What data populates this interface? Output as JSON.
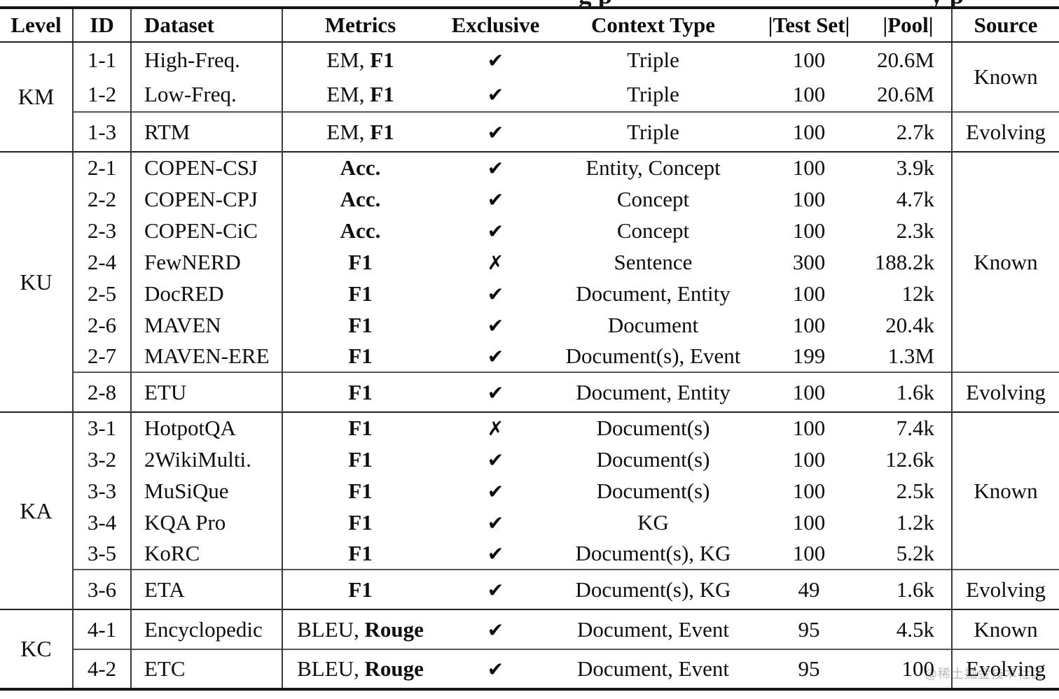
{
  "caption_fragments": [
    {
      "text": "g p"
    },
    {
      "text": "y p"
    }
  ],
  "watermark": "@稀土掘金技术社区",
  "marks": {
    "check": "✔",
    "cross": "✗"
  },
  "colors": {
    "ink": "#0e0e0e",
    "rule_heavy": "#141414",
    "rule_mid": "#202020",
    "rule_light": "#555555",
    "watermark_gray": "#ababab"
  },
  "header": {
    "level": "Level",
    "id": "ID",
    "dataset": "Dataset",
    "metrics": "Metrics",
    "exclusive": "Exclusive",
    "context_type": "Context Type",
    "test_set": "|Test Set|",
    "pool": "|Pool|",
    "source": "Source"
  },
  "sections": [
    {
      "level": "KM",
      "groups": [
        {
          "source": "Known",
          "rows": [
            {
              "id": "1-1",
              "dataset": "High-Freq.",
              "metrics_plain": "EM, ",
              "metrics_bold": "F1",
              "exclusive": "check",
              "context": "Triple",
              "test_set": "100",
              "pool": "20.6M"
            },
            {
              "id": "1-2",
              "dataset": "Low-Freq.",
              "metrics_plain": "EM, ",
              "metrics_bold": "F1",
              "exclusive": "check",
              "context": "Triple",
              "test_set": "100",
              "pool": "20.6M"
            }
          ]
        },
        {
          "source": "Evolving",
          "rows": [
            {
              "id": "1-3",
              "dataset": "RTM",
              "metrics_plain": "EM, ",
              "metrics_bold": "F1",
              "exclusive": "check",
              "context": "Triple",
              "test_set": "100",
              "pool": "2.7k"
            }
          ]
        }
      ]
    },
    {
      "level": "KU",
      "groups": [
        {
          "source": "Known",
          "rows": [
            {
              "id": "2-1",
              "dataset": "COPEN-CSJ",
              "metrics_plain": "",
              "metrics_bold": "Acc.",
              "exclusive": "check",
              "context": "Entity, Concept",
              "test_set": "100",
              "pool": "3.9k"
            },
            {
              "id": "2-2",
              "dataset": "COPEN-CPJ",
              "metrics_plain": "",
              "metrics_bold": "Acc.",
              "exclusive": "check",
              "context": "Concept",
              "test_set": "100",
              "pool": "4.7k"
            },
            {
              "id": "2-3",
              "dataset": "COPEN-CiC",
              "metrics_plain": "",
              "metrics_bold": "Acc.",
              "exclusive": "check",
              "context": "Concept",
              "test_set": "100",
              "pool": "2.3k"
            },
            {
              "id": "2-4",
              "dataset": "FewNERD",
              "metrics_plain": "",
              "metrics_bold": "F1",
              "exclusive": "cross",
              "context": "Sentence",
              "test_set": "300",
              "pool": "188.2k"
            },
            {
              "id": "2-5",
              "dataset": "DocRED",
              "metrics_plain": "",
              "metrics_bold": "F1",
              "exclusive": "check",
              "context": "Document, Entity",
              "test_set": "100",
              "pool": "12k"
            },
            {
              "id": "2-6",
              "dataset": "MAVEN",
              "metrics_plain": "",
              "metrics_bold": "F1",
              "exclusive": "check",
              "context": "Document",
              "test_set": "100",
              "pool": "20.4k"
            },
            {
              "id": "2-7",
              "dataset": "MAVEN-ERE",
              "metrics_plain": "",
              "metrics_bold": "F1",
              "exclusive": "check",
              "context": "Document(s), Event",
              "test_set": "199",
              "pool": "1.3M"
            }
          ]
        },
        {
          "source": "Evolving",
          "rows": [
            {
              "id": "2-8",
              "dataset": "ETU",
              "metrics_plain": "",
              "metrics_bold": "F1",
              "exclusive": "check",
              "context": "Document, Entity",
              "test_set": "100",
              "pool": "1.6k"
            }
          ]
        }
      ]
    },
    {
      "level": "KA",
      "groups": [
        {
          "source": "Known",
          "rows": [
            {
              "id": "3-1",
              "dataset": "HotpotQA",
              "metrics_plain": "",
              "metrics_bold": "F1",
              "exclusive": "cross",
              "context": "Document(s)",
              "test_set": "100",
              "pool": "7.4k"
            },
            {
              "id": "3-2",
              "dataset": "2WikiMulti.",
              "metrics_plain": "",
              "metrics_bold": "F1",
              "exclusive": "check",
              "context": "Document(s)",
              "test_set": "100",
              "pool": "12.6k"
            },
            {
              "id": "3-3",
              "dataset": "MuSiQue",
              "metrics_plain": "",
              "metrics_bold": "F1",
              "exclusive": "check",
              "context": "Document(s)",
              "test_set": "100",
              "pool": "2.5k"
            },
            {
              "id": "3-4",
              "dataset": "KQA Pro",
              "metrics_plain": "",
              "metrics_bold": "F1",
              "exclusive": "check",
              "context": "KG",
              "test_set": "100",
              "pool": "1.2k"
            },
            {
              "id": "3-5",
              "dataset": "KoRC",
              "metrics_plain": "",
              "metrics_bold": "F1",
              "exclusive": "check",
              "context": "Document(s), KG",
              "test_set": "100",
              "pool": "5.2k"
            }
          ]
        },
        {
          "source": "Evolving",
          "rows": [
            {
              "id": "3-6",
              "dataset": "ETA",
              "metrics_plain": "",
              "metrics_bold": "F1",
              "exclusive": "check",
              "context": "Document(s), KG",
              "test_set": "49",
              "pool": "1.6k"
            }
          ]
        }
      ]
    },
    {
      "level": "KC",
      "groups": [
        {
          "source": "Known",
          "rows": [
            {
              "id": "4-1",
              "dataset": "Encyclopedic",
              "metrics_plain": "BLEU, ",
              "metrics_bold": "Rouge",
              "exclusive": "check",
              "context": "Document, Event",
              "test_set": "95",
              "pool": "4.5k"
            }
          ]
        },
        {
          "source": "Evolving",
          "rows": [
            {
              "id": "4-2",
              "dataset": "ETC",
              "metrics_plain": "BLEU, ",
              "metrics_bold": "Rouge",
              "exclusive": "check",
              "context": "Document, Event",
              "test_set": "95",
              "pool": "100"
            }
          ]
        }
      ]
    }
  ]
}
